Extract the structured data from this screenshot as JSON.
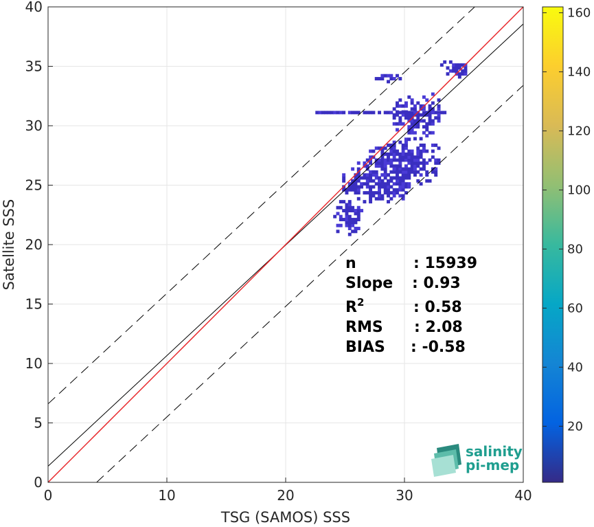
{
  "chart_data": {
    "type": "heatmap",
    "xlabel": "TSG (SAMOS) SSS",
    "ylabel": "Satellite SSS",
    "xlim": [
      0,
      40
    ],
    "ylim": [
      0,
      40
    ],
    "x_ticks": [
      "0",
      "10",
      "20",
      "30",
      "40"
    ],
    "y_ticks": [
      "0",
      "5",
      "10",
      "15",
      "20",
      "25",
      "30",
      "35",
      "40"
    ],
    "grid": true,
    "colorbar": {
      "range": [
        1,
        162
      ],
      "ticks": [
        "20",
        "40",
        "60",
        "80",
        "100",
        "120",
        "140",
        "160"
      ],
      "colormap": "parula"
    },
    "lines": {
      "identity": {
        "slope": 1,
        "intercept": 0,
        "color": "#e8262a"
      },
      "regression": {
        "slope": 0.93,
        "intercept": 1.36,
        "color": "#000000"
      },
      "upper_bound": {
        "slope": 0.93,
        "intercept": 6.6,
        "style": "dashed"
      },
      "lower_bound": {
        "slope": 0.93,
        "intercept": -3.8,
        "style": "dashed"
      }
    },
    "density_clusters": [
      {
        "x": [
          22.5,
          33.5
        ],
        "y": [
          31.0,
          31.2
        ],
        "level": "low"
      },
      {
        "x": [
          29.0,
          33.0
        ],
        "y": [
          28.8,
          32.6
        ],
        "level": "low"
      },
      {
        "x": [
          26.0,
          33.0
        ],
        "y": [
          25.0,
          28.8
        ],
        "level": "low"
      },
      {
        "x": [
          24.5,
          30.5
        ],
        "y": [
          23.5,
          26.5
        ],
        "level": "low"
      },
      {
        "x": [
          24.0,
          26.5
        ],
        "y": [
          20.5,
          24.0
        ],
        "level": "low"
      },
      {
        "x": [
          27.0,
          30.0
        ],
        "y": [
          33.6,
          34.3
        ],
        "level": "low"
      },
      {
        "x": [
          33.0,
          35.2
        ],
        "y": [
          34.0,
          35.4
        ],
        "level": "low"
      }
    ],
    "stats": [
      {
        "label": "n",
        "sep": ": 15939"
      },
      {
        "label": "Slope",
        "sep": ": 0.93"
      },
      {
        "label": "R",
        "sup": "2",
        "sep": ": 0.58"
      },
      {
        "label": "RMS",
        "sep": ": 2.08"
      },
      {
        "label": "BIAS",
        "sep": ": -0.58"
      }
    ]
  },
  "logo": {
    "line1": "salinity",
    "line2": "pi-mep"
  }
}
